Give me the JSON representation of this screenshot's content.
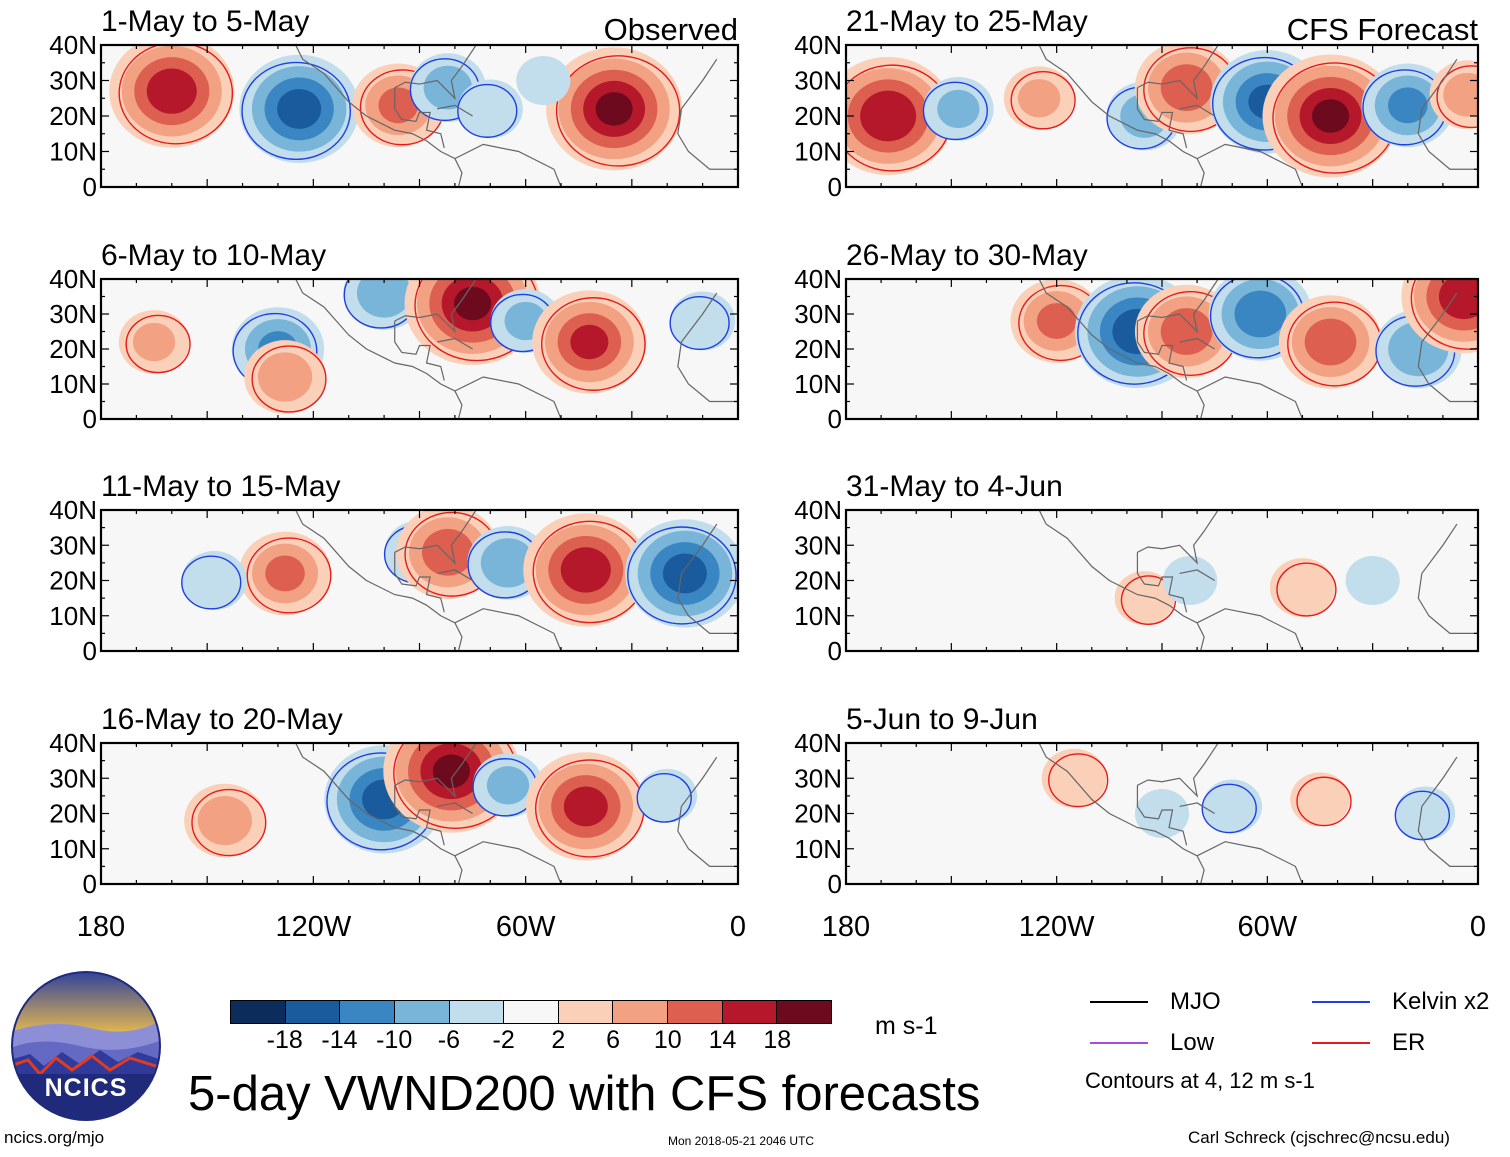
{
  "title": "5-day VWND200 with CFS forecasts",
  "units": "m s-1",
  "footer": {
    "left": "ncics.org/mjo",
    "middle": "Mon 2018-05-21 2046 UTC",
    "right": "Carl Schreck (cjschrec@ncsu.edu)"
  },
  "logo": {
    "text": "NCICS"
  },
  "legend": {
    "items": [
      {
        "name": "MJO",
        "color": "#000000"
      },
      {
        "name": "Kelvin x2",
        "color": "#1f3fe0"
      },
      {
        "name": "Low",
        "color": "#a84be0"
      },
      {
        "name": "ER",
        "color": "#e51c1c"
      }
    ],
    "note": "Contours at 4, 12 m s-1"
  },
  "colorbar": {
    "colors": [
      "#0c2c5c",
      "#1a5b9e",
      "#3a86c2",
      "#79b4d9",
      "#c2ddec",
      "#f7f7f7",
      "#fbd0b8",
      "#f2a183",
      "#dc5f50",
      "#b5182a",
      "#6e0a1e"
    ],
    "tick_labels": [
      "-18",
      "-14",
      "-10",
      "-6",
      "-2",
      "2",
      "6",
      "10",
      "14",
      "18"
    ]
  },
  "chart_data": {
    "type": "heatmap",
    "variable": "200-hPa meridional wind anomaly",
    "x_axis": {
      "range": [
        180,
        0
      ],
      "tick_labels": [
        "180",
        "120W",
        "60W",
        "0"
      ]
    },
    "y_axis": {
      "range": [
        0,
        40
      ],
      "tick_labels": [
        "40N",
        "30N",
        "20N",
        "10N",
        "0"
      ]
    },
    "columns": [
      {
        "label": "Observed",
        "panels": [
          {
            "title": "1-May to 5-May"
          },
          {
            "title": "6-May to 10-May"
          },
          {
            "title": "11-May to 15-May"
          },
          {
            "title": "16-May to 20-May"
          }
        ]
      },
      {
        "label": "CFS Forecast",
        "panels": [
          {
            "title": "21-May to 25-May"
          },
          {
            "title": "26-May to 30-May"
          },
          {
            "title": "31-May to 4-Jun"
          },
          {
            "title": "5-Jun to 9-Jun"
          }
        ]
      }
    ],
    "anomalies": [
      [
        [
          {
            "lon": -160,
            "lat": 27,
            "v": 16
          },
          {
            "lon": -124,
            "lat": 22,
            "v": -15
          },
          {
            "lon": -96,
            "lat": 23,
            "v": 10
          },
          {
            "lon": -82,
            "lat": 28,
            "v": -7
          },
          {
            "lon": -70,
            "lat": 22,
            "v": -5
          },
          {
            "lon": -35,
            "lat": 22,
            "v": 18
          },
          {
            "lon": -55,
            "lat": 30,
            "v": -3
          }
        ],
        [
          {
            "lon": -165,
            "lat": 22,
            "v": 6
          },
          {
            "lon": -130,
            "lat": 20,
            "v": -10
          },
          {
            "lon": -100,
            "lat": 36,
            "v": -8
          },
          {
            "lon": -75,
            "lat": 33,
            "v": 18
          },
          {
            "lon": -60,
            "lat": 28,
            "v": -6
          },
          {
            "lon": -42,
            "lat": 22,
            "v": 14
          },
          {
            "lon": -128,
            "lat": 12,
            "v": 8
          },
          {
            "lon": -10,
            "lat": 28,
            "v": -5
          }
        ],
        [
          {
            "lon": -128,
            "lat": 22,
            "v": 10
          },
          {
            "lon": -148,
            "lat": 20,
            "v": -5
          },
          {
            "lon": -90,
            "lat": 28,
            "v": -6
          },
          {
            "lon": -82,
            "lat": 28,
            "v": 12
          },
          {
            "lon": -65,
            "lat": 25,
            "v": -8
          },
          {
            "lon": -43,
            "lat": 23,
            "v": 16
          },
          {
            "lon": -15,
            "lat": 22,
            "v": -15
          }
        ],
        [
          {
            "lon": -145,
            "lat": 18,
            "v": 8
          },
          {
            "lon": -100,
            "lat": 24,
            "v": -15
          },
          {
            "lon": -81,
            "lat": 32,
            "v": 18
          },
          {
            "lon": -65,
            "lat": 28,
            "v": -6
          },
          {
            "lon": -43,
            "lat": 22,
            "v": 15
          },
          {
            "lon": -20,
            "lat": 25,
            "v": -4
          }
        ]
      ],
      [
        [
          {
            "lon": -168,
            "lat": 20,
            "v": 17
          },
          {
            "lon": -148,
            "lat": 22,
            "v": -6
          },
          {
            "lon": -125,
            "lat": 25,
            "v": 6
          },
          {
            "lon": -95,
            "lat": 20,
            "v": -7
          },
          {
            "lon": -83,
            "lat": 28,
            "v": 12
          },
          {
            "lon": -60,
            "lat": 24,
            "v": -14
          },
          {
            "lon": -42,
            "lat": 20,
            "v": 18
          },
          {
            "lon": -20,
            "lat": 23,
            "v": -10
          },
          {
            "lon": -3,
            "lat": 26,
            "v": 7
          }
        ],
        [
          {
            "lon": -120,
            "lat": 28,
            "v": 10
          },
          {
            "lon": -97,
            "lat": 25,
            "v": -16
          },
          {
            "lon": -83,
            "lat": 25,
            "v": 12
          },
          {
            "lon": -62,
            "lat": 30,
            "v": -12
          },
          {
            "lon": -42,
            "lat": 22,
            "v": 12
          },
          {
            "lon": -17,
            "lat": 20,
            "v": -9
          },
          {
            "lon": -4,
            "lat": 35,
            "v": 16
          }
        ],
        [
          {
            "lon": -95,
            "lat": 15,
            "v": 4
          },
          {
            "lon": -82,
            "lat": 20,
            "v": -3
          },
          {
            "lon": -50,
            "lat": 18,
            "v": 5
          },
          {
            "lon": -30,
            "lat": 20,
            "v": -3
          }
        ],
        [
          {
            "lon": -115,
            "lat": 30,
            "v": 5
          },
          {
            "lon": -90,
            "lat": 20,
            "v": -3
          },
          {
            "lon": -70,
            "lat": 22,
            "v": -4
          },
          {
            "lon": -45,
            "lat": 24,
            "v": 4
          },
          {
            "lon": -15,
            "lat": 20,
            "v": -4
          }
        ]
      ]
    ]
  }
}
